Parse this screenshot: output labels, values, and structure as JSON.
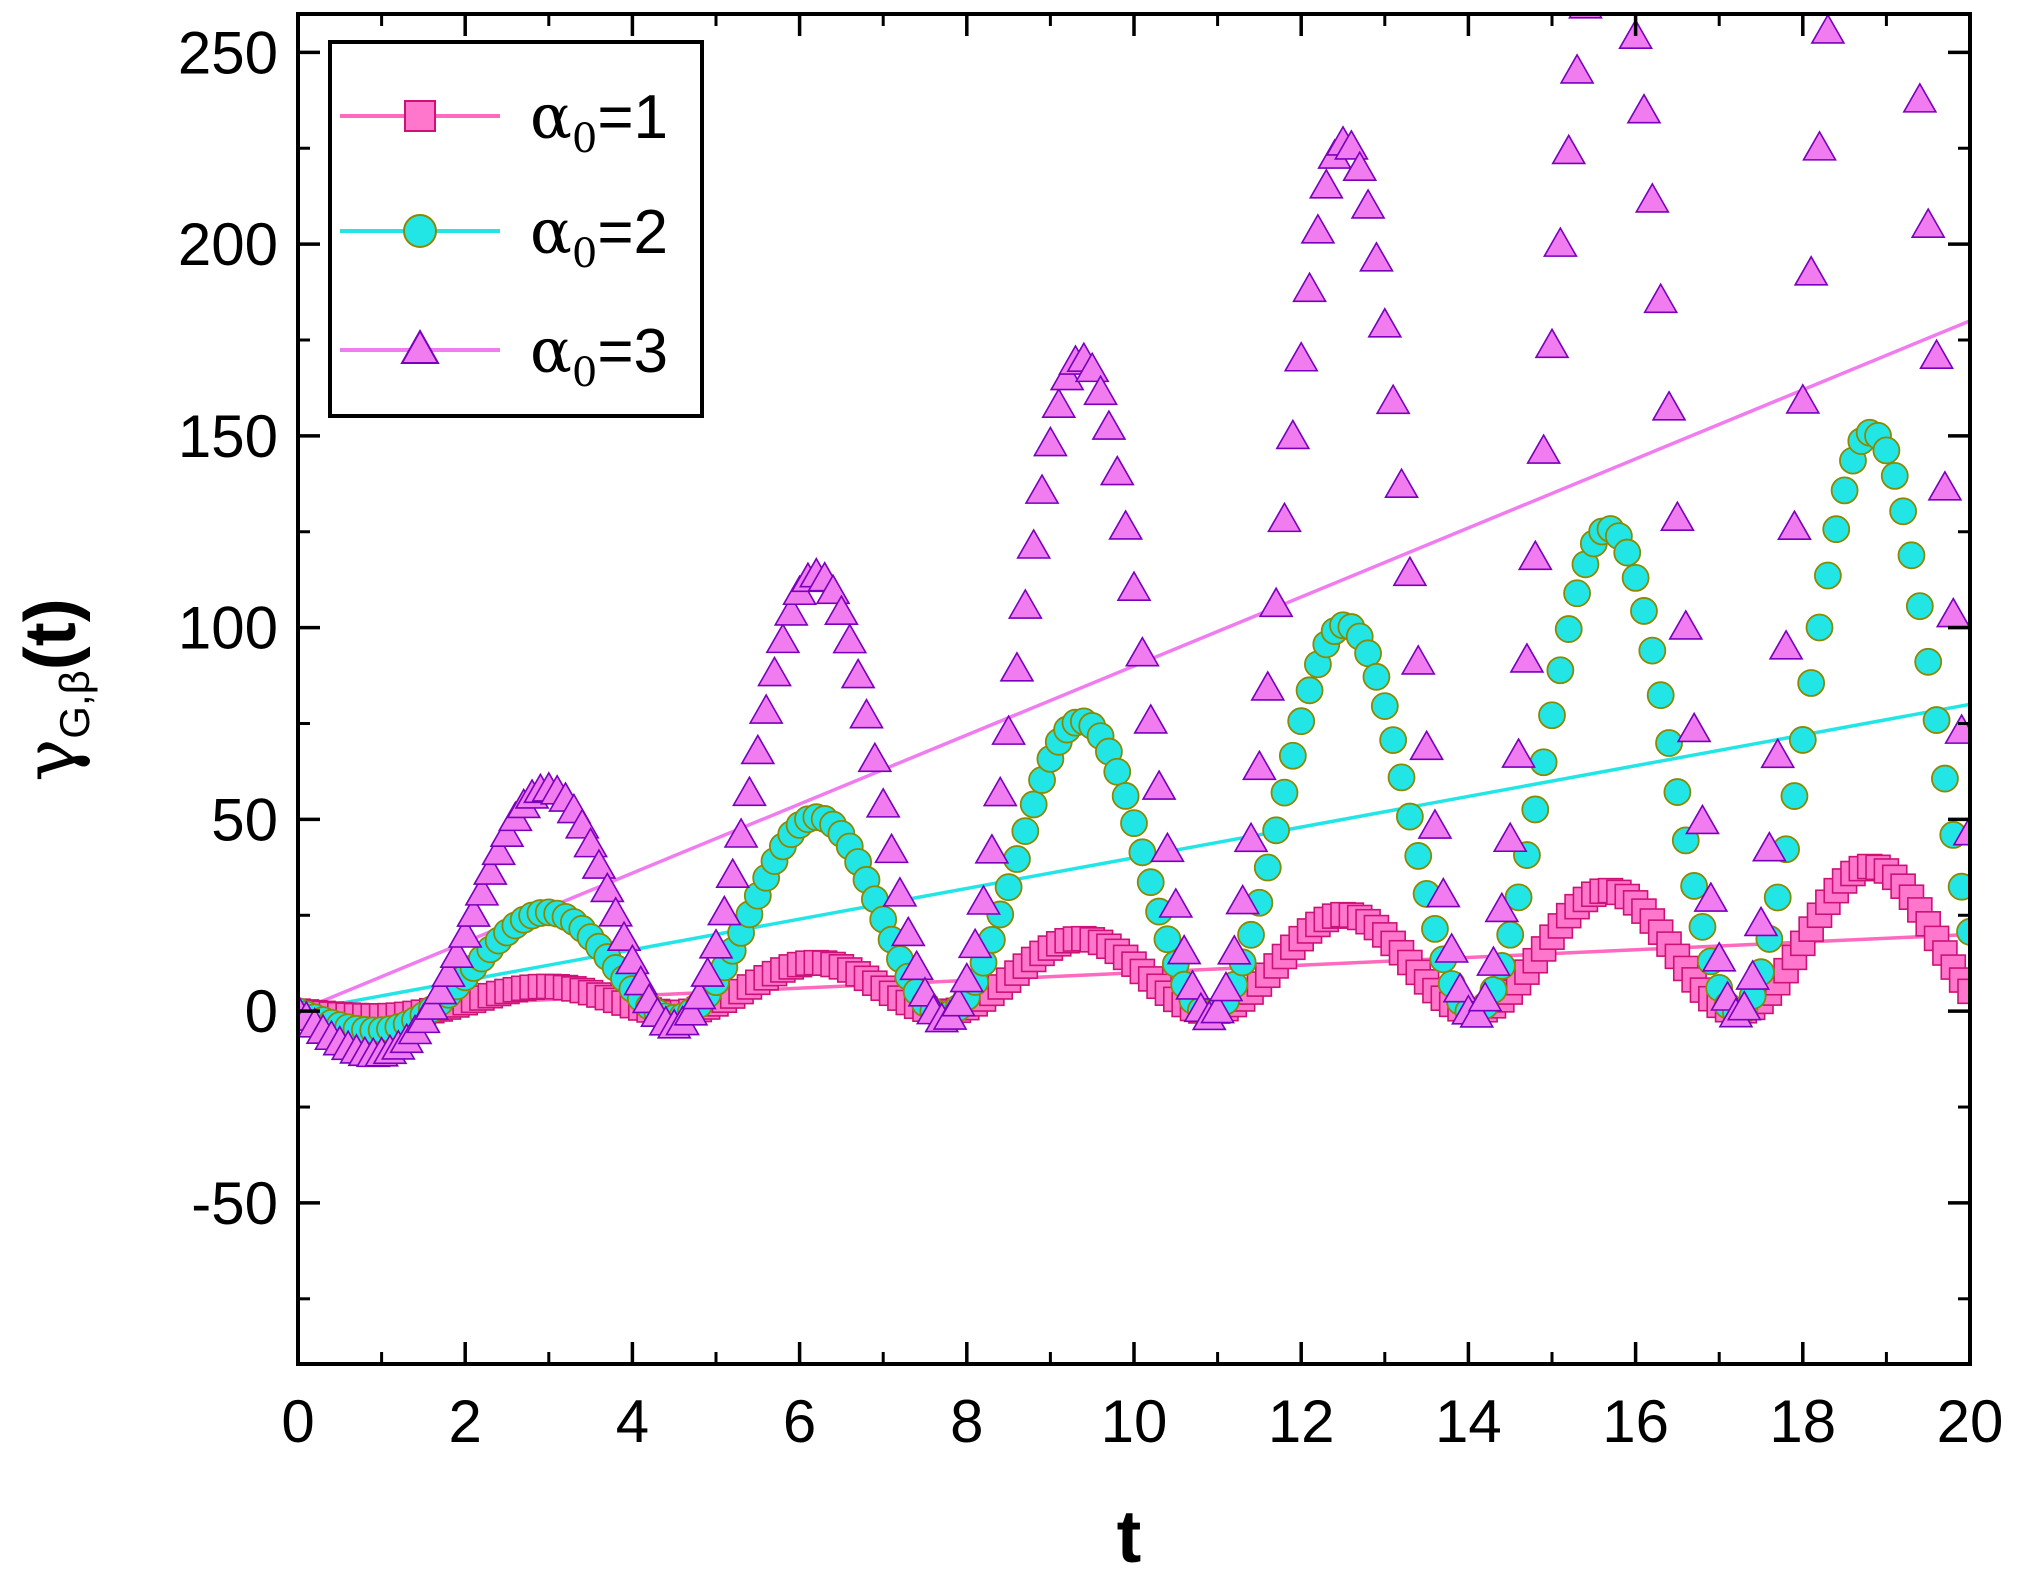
{
  "chart_data": {
    "type": "line",
    "xlabel": "t",
    "ylabel": {
      "base": "γ",
      "subscript": "G,β",
      "suffix": "(t)"
    },
    "xlim": [
      0,
      20
    ],
    "ylim": [
      -92,
      260
    ],
    "xticks": [
      0,
      2,
      4,
      6,
      8,
      10,
      12,
      14,
      16,
      18,
      20
    ],
    "yticks": [
      -50,
      0,
      50,
      100,
      150,
      200,
      250
    ],
    "xtick_labels": [
      "0",
      "2",
      "4",
      "6",
      "8",
      "10",
      "12",
      "14",
      "16",
      "18",
      "20"
    ],
    "ytick_labels": [
      "-50",
      "0",
      "50",
      "100",
      "150",
      "200",
      "250"
    ],
    "grid": false,
    "legend_position": "top-left",
    "model": "y = a*t*(1 + cos(2t)) - 2*a*sin(2t)",
    "sample_step": 0.1,
    "series": [
      {
        "name": "α0=1",
        "legend": {
          "base": "α",
          "sub": "0",
          "rest": "=1"
        },
        "a": 1,
        "trend_slope": 1,
        "marker": "square",
        "marker_fill": "#ff77cc",
        "marker_stroke": "#cc1177",
        "line_color": "#ff69c0"
      },
      {
        "name": "α0=2",
        "legend": {
          "base": "α",
          "sub": "0",
          "rest": "=2"
        },
        "a": 4,
        "trend_slope": 4,
        "marker": "circle",
        "marker_fill": "#22e6e6",
        "marker_stroke": "#8a8a00",
        "line_color": "#22e6e6"
      },
      {
        "name": "α0=3",
        "legend": {
          "base": "α",
          "sub": "0",
          "rest": "=3"
        },
        "a": 9,
        "trend_slope": 9,
        "marker": "triangle",
        "marker_fill": "#f07cf0",
        "marker_stroke": "#7a00bb",
        "line_color": "#f07cf0"
      }
    ]
  }
}
